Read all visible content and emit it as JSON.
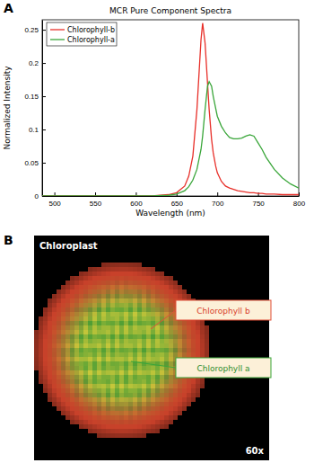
{
  "chart_data": {
    "type": "line",
    "panel": "A",
    "title": "MCR Pure Component Spectra",
    "x_label": "Wavelength (nm)",
    "y_label": "Normalized Intensity",
    "x": [
      485,
      500,
      550,
      600,
      620,
      640,
      650,
      660,
      665,
      670,
      675,
      680,
      682,
      685,
      688,
      690,
      693,
      695,
      698,
      700,
      705,
      710,
      715,
      720,
      725,
      730,
      735,
      740,
      745,
      750,
      755,
      760,
      770,
      780,
      790,
      800
    ],
    "series": [
      {
        "name": "Chlorophyll-b",
        "color": "#e8302a",
        "values": [
          0,
          0,
          0,
          0,
          0,
          0.002,
          0.005,
          0.015,
          0.03,
          0.06,
          0.13,
          0.235,
          0.26,
          0.23,
          0.17,
          0.13,
          0.085,
          0.065,
          0.045,
          0.035,
          0.022,
          0.015,
          0.012,
          0.01,
          0.008,
          0.007,
          0.006,
          0.005,
          0.005,
          0.004,
          0.004,
          0.003,
          0.003,
          0.002,
          0.002,
          0.002
        ]
      },
      {
        "name": "Chlorophyll-a",
        "color": "#3aa63a",
        "values": [
          0,
          0,
          0,
          0,
          0,
          0.001,
          0.003,
          0.008,
          0.014,
          0.024,
          0.04,
          0.07,
          0.09,
          0.13,
          0.165,
          0.172,
          0.165,
          0.15,
          0.132,
          0.12,
          0.105,
          0.095,
          0.088,
          0.086,
          0.086,
          0.087,
          0.09,
          0.092,
          0.09,
          0.08,
          0.07,
          0.058,
          0.04,
          0.027,
          0.018,
          0.012
        ]
      }
    ],
    "xlim": [
      485,
      800
    ],
    "xticks": [
      500,
      550,
      600,
      650,
      700,
      750,
      800
    ],
    "ylim": [
      0,
      0.265
    ],
    "yticks": [
      0,
      0.05,
      0.1,
      0.15,
      0.2,
      0.25
    ],
    "legend": "upper-left"
  },
  "image": {
    "panel": "B",
    "title": "Chloroplast",
    "magnification": "60x",
    "labels": [
      "Chlorophyll b",
      "Chlorophyll a"
    ]
  }
}
